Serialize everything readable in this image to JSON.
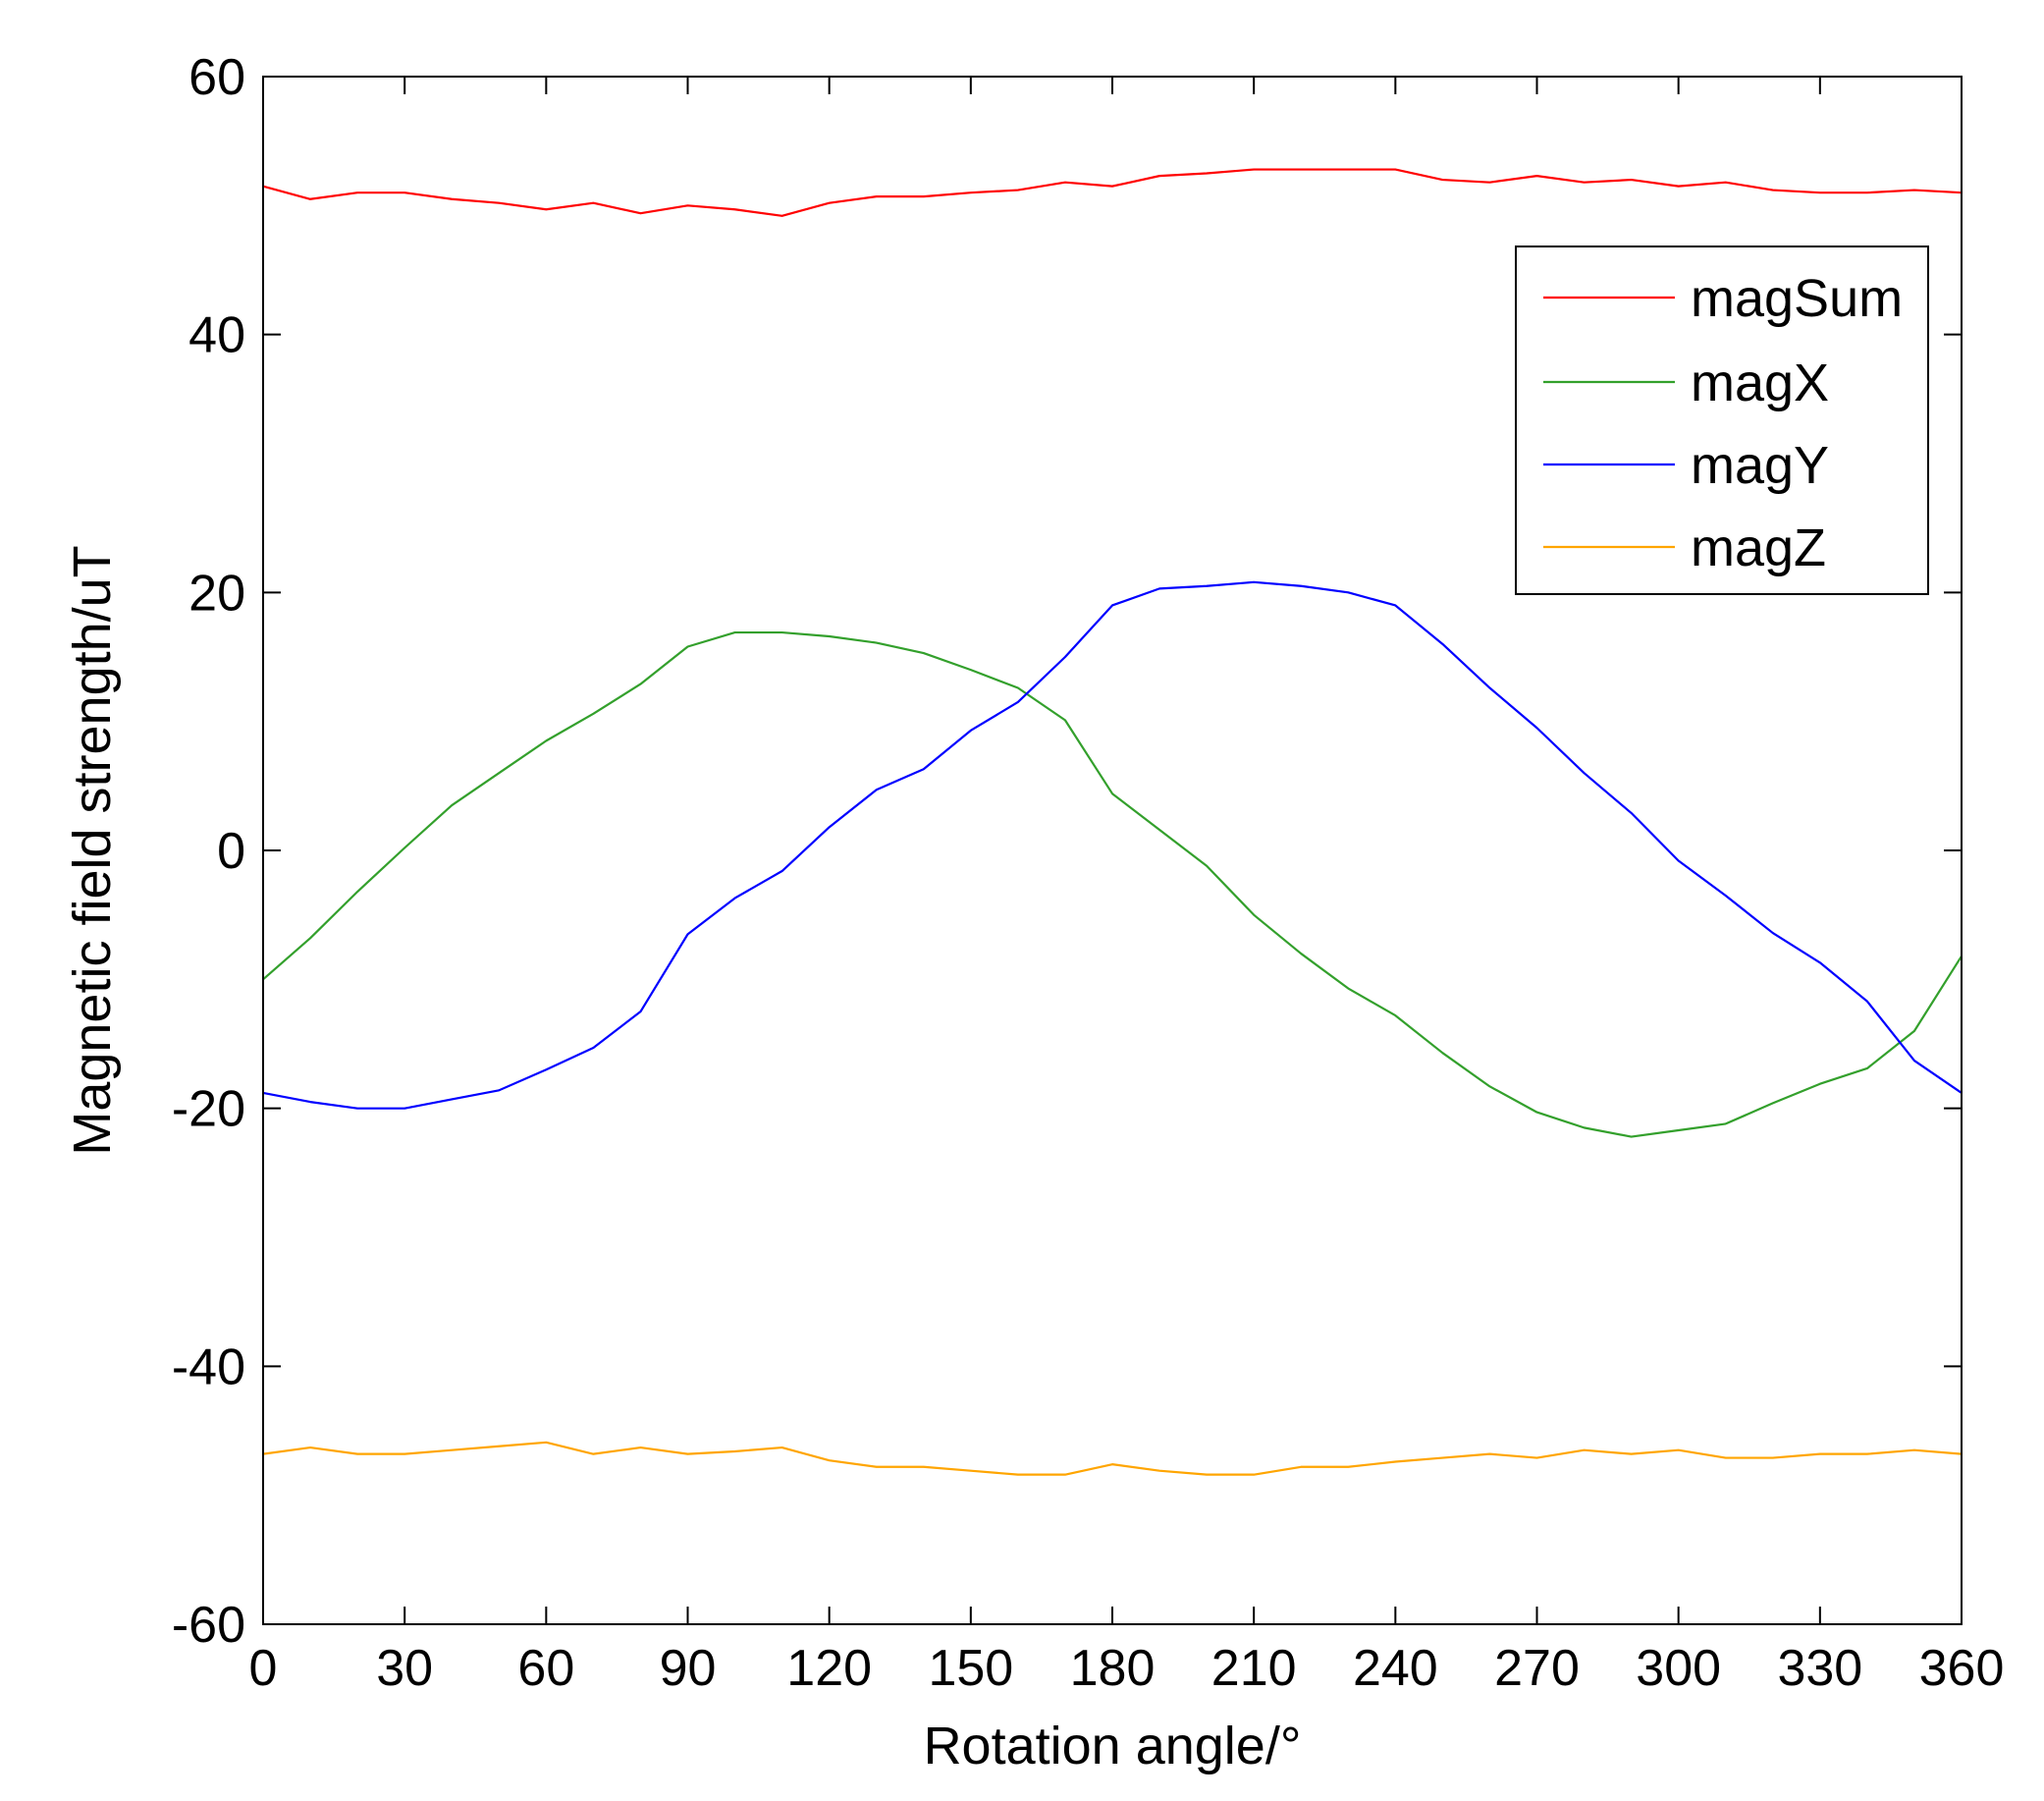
{
  "chart_data": {
    "type": "line",
    "title": "",
    "xlabel": "Rotation angle/°",
    "ylabel": "Magnetic field strength/uT",
    "xlim": [
      0,
      360
    ],
    "ylim": [
      -60,
      60
    ],
    "xticks": [
      0,
      30,
      60,
      90,
      120,
      150,
      180,
      210,
      240,
      270,
      300,
      330,
      360
    ],
    "yticks": [
      -60,
      -40,
      -20,
      0,
      20,
      40,
      60
    ],
    "grid": false,
    "legend_position": "top-right",
    "x": [
      0,
      10,
      20,
      30,
      40,
      50,
      60,
      70,
      80,
      90,
      100,
      110,
      120,
      130,
      140,
      150,
      160,
      170,
      180,
      190,
      200,
      210,
      220,
      230,
      240,
      250,
      260,
      270,
      280,
      290,
      300,
      310,
      320,
      330,
      340,
      350,
      360
    ],
    "series": [
      {
        "name": "magSum",
        "color": "#ff0000",
        "values": [
          51.5,
          50.5,
          51.0,
          51.0,
          50.5,
          50.2,
          49.7,
          50.2,
          49.4,
          50.0,
          49.7,
          49.2,
          50.2,
          50.7,
          50.7,
          51.0,
          51.2,
          51.8,
          51.5,
          52.3,
          52.5,
          52.8,
          52.8,
          52.8,
          52.8,
          52.0,
          51.8,
          52.3,
          51.8,
          52.0,
          51.5,
          51.8,
          51.2,
          51.0,
          51.0,
          51.2,
          51.0
        ]
      },
      {
        "name": "magX",
        "color": "#33a02c",
        "values": [
          -10.0,
          -6.8,
          -3.2,
          0.2,
          3.5,
          6.0,
          8.5,
          10.6,
          12.9,
          15.8,
          16.9,
          16.9,
          16.6,
          16.1,
          15.3,
          14.0,
          12.6,
          10.1,
          4.4,
          1.6,
          -1.2,
          -5.0,
          -8.0,
          -10.7,
          -12.8,
          -15.7,
          -18.3,
          -20.3,
          -21.5,
          -22.2,
          -21.7,
          -21.2,
          -19.6,
          -18.1,
          -16.9,
          -14.0,
          -8.2
        ]
      },
      {
        "name": "magY",
        "color": "#0000ff",
        "values": [
          -18.8,
          -19.5,
          -20.0,
          -20.0,
          -19.3,
          -18.6,
          -17.0,
          -15.3,
          -12.5,
          -6.5,
          -3.7,
          -1.6,
          1.8,
          4.7,
          6.3,
          9.3,
          11.5,
          15.0,
          19.0,
          20.3,
          20.5,
          20.8,
          20.5,
          20.0,
          19.0,
          16.0,
          12.6,
          9.5,
          6.0,
          2.9,
          -0.8,
          -3.5,
          -6.4,
          -8.7,
          -11.7,
          -16.3,
          -18.8
        ]
      },
      {
        "name": "magZ",
        "color": "#ffa500",
        "values": [
          -46.8,
          -46.3,
          -46.8,
          -46.8,
          -46.5,
          -46.2,
          -45.9,
          -46.8,
          -46.3,
          -46.8,
          -46.6,
          -46.3,
          -47.3,
          -47.8,
          -47.8,
          -48.1,
          -48.4,
          -48.4,
          -47.6,
          -48.1,
          -48.4,
          -48.4,
          -47.8,
          -47.8,
          -47.4,
          -47.1,
          -46.8,
          -47.1,
          -46.5,
          -46.8,
          -46.5,
          -47.1,
          -47.1,
          -46.8,
          -46.8,
          -46.5,
          -46.8
        ]
      }
    ]
  }
}
